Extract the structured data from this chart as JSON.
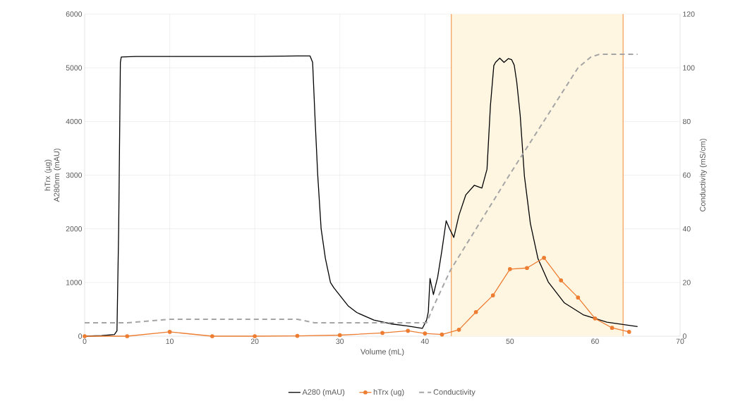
{
  "chart_data": {
    "type": "line",
    "xlabel": "Volume (mL)",
    "ylabel": "hTrx (µg) A280nm (mAU)",
    "y2label": "Conductivity (mS/cm)",
    "xlim": [
      0,
      70
    ],
    "xticks": [
      0,
      10,
      20,
      30,
      40,
      50,
      60,
      70
    ],
    "ylim": [
      0,
      6000
    ],
    "yticks": [
      0,
      1000,
      2000,
      3000,
      4000,
      5000,
      6000
    ],
    "y2lim": [
      0,
      120
    ],
    "y2ticks": [
      0,
      20,
      40,
      60,
      80,
      100,
      120
    ],
    "grid": true,
    "legend": "bottom",
    "bands": [
      {
        "axis": "x",
        "from": 43.1,
        "to": 63.3,
        "color": "#fff6e2"
      }
    ],
    "ref_lines": [
      {
        "axis": "x",
        "value": 43.1,
        "color": "#f4a461"
      },
      {
        "axis": "x",
        "value": 63.3,
        "color": "#f4a461"
      }
    ],
    "series": [
      {
        "name": "A280 (mAU)",
        "color": "#000000",
        "marker": "none",
        "line_style": "solid",
        "x": [
          0,
          2,
          3.5,
          3.8,
          4.0,
          4.2,
          4.3,
          6,
          10,
          15,
          20,
          25,
          26.5,
          26.8,
          27.1,
          27.4,
          27.8,
          28.3,
          28.9,
          29.3,
          30,
          31,
          32,
          34,
          36,
          38,
          39.7,
          40.2,
          40.4,
          40.6,
          41.0,
          41.5,
          42.0,
          42.5,
          42.9,
          43.4,
          44.0,
          44.8,
          45.8,
          46.7,
          47.3,
          47.7,
          48.1,
          48.3,
          48.8,
          49.3,
          49.8,
          50.2,
          50.5,
          50.8,
          51.2,
          51.7,
          52.4,
          53.3,
          54.5,
          56.4,
          58.6,
          61.4,
          65
        ],
        "values": [
          0,
          10,
          30,
          100,
          2000,
          5100,
          5200,
          5210,
          5210,
          5210,
          5210,
          5220,
          5220,
          5100,
          4000,
          3000,
          2000,
          1450,
          1000,
          900,
          760,
          560,
          440,
          300,
          230,
          190,
          145,
          300,
          450,
          1075,
          775,
          1100,
          1600,
          2150,
          2000,
          1840,
          2250,
          2630,
          2810,
          2760,
          3110,
          4290,
          5040,
          5100,
          5180,
          5100,
          5170,
          5150,
          5050,
          4730,
          4120,
          2980,
          2100,
          1440,
          1010,
          620,
          400,
          260,
          180
        ]
      },
      {
        "name": "hTrx (ug)",
        "color": "#ed7d31",
        "marker": "circle",
        "line_style": "solid",
        "x": [
          0,
          5,
          10,
          15,
          20,
          25,
          30,
          35,
          38,
          40,
          42,
          44,
          46,
          48,
          50,
          52,
          54,
          56,
          58,
          60,
          62,
          64
        ],
        "values": [
          0,
          0,
          80,
          0,
          0,
          5,
          20,
          60,
          100,
          50,
          30,
          120,
          450,
          760,
          1250,
          1270,
          1460,
          1040,
          720,
          330,
          155,
          80
        ]
      },
      {
        "name": "Conductivity",
        "color": "#a5a5a5",
        "marker": "none",
        "line_style": "dashed",
        "axis": "y2",
        "x": [
          0,
          5,
          10,
          25,
          27,
          40.2,
          41,
          43,
          50,
          58,
          59.5,
          60.5,
          65
        ],
        "values": [
          5,
          5,
          6.3,
          6.3,
          5,
          5,
          11,
          24.6,
          60.4,
          100,
          104,
          105,
          105
        ]
      }
    ]
  }
}
